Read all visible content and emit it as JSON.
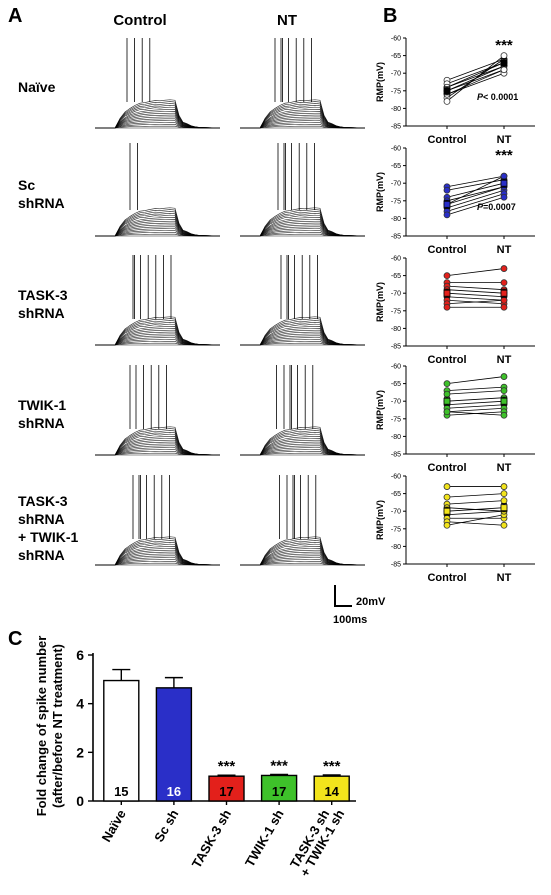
{
  "panel_a": {
    "letter": "A",
    "col_headers": [
      "Control",
      "NT"
    ],
    "rows": [
      {
        "label_lines": [
          "Naïve"
        ],
        "spikes_control": 4,
        "spikes_nt": 7
      },
      {
        "label_lines": [
          "Sc",
          "shRNA"
        ],
        "spikes_control": 2,
        "spikes_nt": 7
      },
      {
        "label_lines": [
          "TASK-3",
          "shRNA"
        ],
        "spikes_control": 7,
        "spikes_nt": 7
      },
      {
        "label_lines": [
          "TWIK-1",
          "shRNA"
        ],
        "spikes_control": 6,
        "spikes_nt": 7
      },
      {
        "label_lines": [
          "TASK-3",
          "shRNA",
          "+ TWIK-1",
          "shRNA"
        ],
        "spikes_control": 7,
        "spikes_nt": 7
      }
    ],
    "scalebar": {
      "v_label": "20mV",
      "h_label": "100ms"
    }
  },
  "panel_b": {
    "letter": "B",
    "ylabel": "RMP(mV)",
    "ticks": [
      -60,
      -65,
      -70,
      -75,
      -80,
      -85
    ],
    "ylim": [
      -85,
      -60
    ],
    "xcats": [
      "Control",
      "NT"
    ],
    "plots": [
      {
        "color": "#ffffff",
        "sig": "***",
        "p_label": "P< 0.0001",
        "pairs": [
          [
            -72,
            -66
          ],
          [
            -73,
            -67
          ],
          [
            -74,
            -68
          ],
          [
            -75,
            -69
          ],
          [
            -76,
            -70
          ],
          [
            -77,
            -66
          ],
          [
            -78,
            -65
          ],
          [
            -74,
            -67
          ],
          [
            -75,
            -68
          ],
          [
            -76,
            -69
          ]
        ],
        "means": [
          -75,
          -67
        ]
      },
      {
        "color": "#2a2fc8",
        "sig": "***",
        "p_label": "P=0.0007",
        "pairs": [
          [
            -71,
            -68
          ],
          [
            -72,
            -69
          ],
          [
            -74,
            -70
          ],
          [
            -76,
            -71
          ],
          [
            -77,
            -72
          ],
          [
            -78,
            -73
          ],
          [
            -79,
            -74
          ],
          [
            -76,
            -68
          ],
          [
            -75,
            -71
          ]
        ],
        "means": [
          -76,
          -70
        ]
      },
      {
        "color": "#e3201b",
        "sig": "",
        "p_label": "",
        "pairs": [
          [
            -65,
            -63
          ],
          [
            -67,
            -67
          ],
          [
            -68,
            -69
          ],
          [
            -69,
            -70
          ],
          [
            -70,
            -71
          ],
          [
            -71,
            -72
          ],
          [
            -72,
            -73
          ],
          [
            -73,
            -72
          ],
          [
            -74,
            -74
          ]
        ],
        "means": [
          -70,
          -70
        ]
      },
      {
        "color": "#3ec12a",
        "sig": "",
        "p_label": "",
        "pairs": [
          [
            -65,
            -63
          ],
          [
            -67,
            -66
          ],
          [
            -68,
            -67
          ],
          [
            -70,
            -69
          ],
          [
            -71,
            -70
          ],
          [
            -72,
            -71
          ],
          [
            -73,
            -72
          ],
          [
            -74,
            -73
          ],
          [
            -73,
            -74
          ]
        ],
        "means": [
          -70,
          -70
        ]
      },
      {
        "color": "#f2e41c",
        "sig": "",
        "p_label": "",
        "pairs": [
          [
            -63,
            -63
          ],
          [
            -66,
            -65
          ],
          [
            -68,
            -67
          ],
          [
            -70,
            -69
          ],
          [
            -71,
            -70
          ],
          [
            -72,
            -72
          ],
          [
            -73,
            -74
          ],
          [
            -74,
            -71
          ],
          [
            -69,
            -70
          ]
        ],
        "means": [
          -70,
          -69
        ]
      }
    ]
  },
  "panel_c": {
    "letter": "C",
    "chart_data": {
      "type": "bar",
      "categories": [
        "Naïve",
        "Sc sh",
        "TASK-3 sh",
        "TWIK-1 sh",
        "TASK-3 sh + TWIK-1 sh"
      ],
      "category_lines": [
        [
          "Naïve"
        ],
        [
          "Sc sh"
        ],
        [
          "TASK-3 sh"
        ],
        [
          "TWIK-1 sh"
        ],
        [
          "TASK-3 sh",
          "+ TWIK-1 sh"
        ]
      ],
      "values": [
        4.95,
        4.65,
        1.02,
        1.05,
        1.02
      ],
      "errors": [
        0.45,
        0.42,
        0.04,
        0.04,
        0.05
      ],
      "n_labels": [
        "15",
        "16",
        "17",
        "17",
        "14"
      ],
      "sig": [
        "",
        "",
        "***",
        "***",
        "***"
      ],
      "colors": [
        "#ffffff",
        "#2a2fc8",
        "#e3201b",
        "#3ec12a",
        "#f2e41c"
      ],
      "n_label_colors": [
        "#000000",
        "#ffffff",
        "#000000",
        "#000000",
        "#000000"
      ],
      "ylabel_lines": [
        "Fold change of spike number",
        "(after/before NT treatment)"
      ],
      "ylim": [
        0,
        6
      ],
      "yticks": [
        0,
        2,
        4,
        6
      ]
    }
  }
}
